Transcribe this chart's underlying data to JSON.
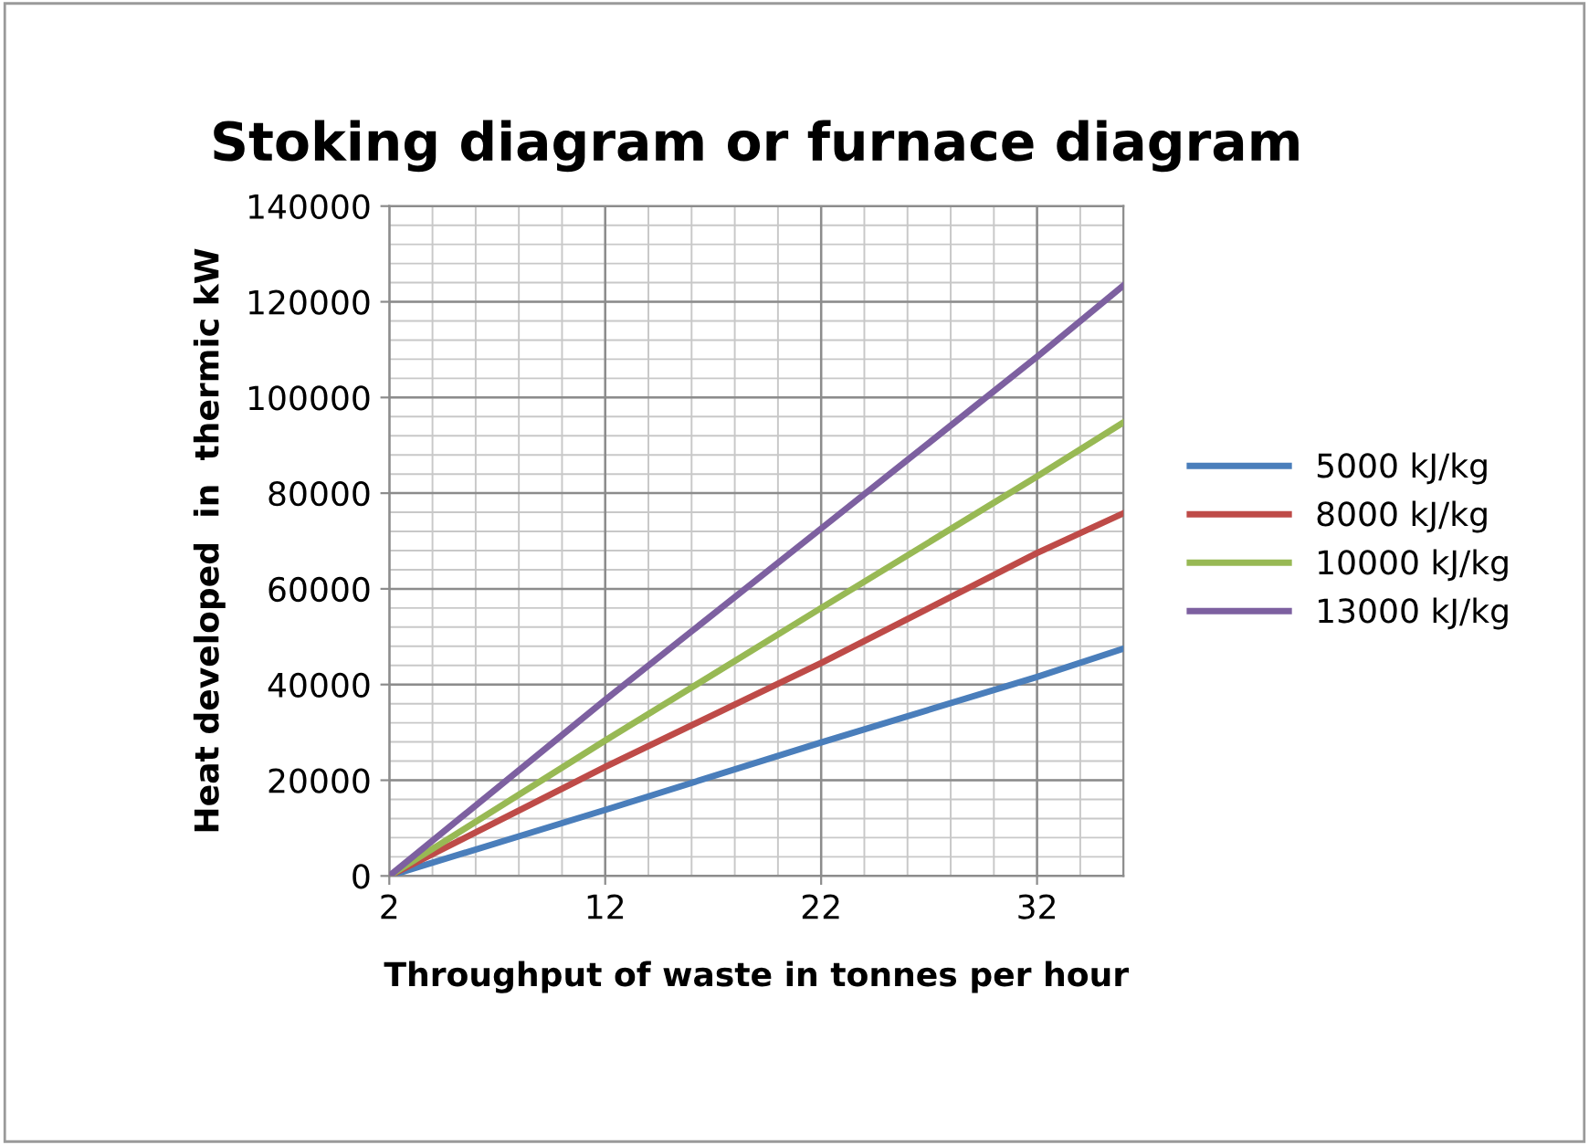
{
  "chart_data": {
    "type": "line",
    "title": "Stoking diagram or furnace diagram",
    "xlabel": "Throughput of waste in tonnes per hour",
    "ylabel": "Heat developed  in  thermic kW",
    "x": [
      2,
      12,
      22,
      32,
      36
    ],
    "series": [
      {
        "name": "5000 kJ/kg",
        "color": "#4a7ebb",
        "values": [
          0,
          13800,
          27900,
          41600,
          47500
        ]
      },
      {
        "name": "8000 kJ/kg",
        "color": "#be4b48",
        "values": [
          0,
          22800,
          44500,
          67500,
          75800
        ]
      },
      {
        "name": "10000 kJ/kg",
        "color": "#98b954",
        "values": [
          0,
          28300,
          56000,
          83500,
          94800
        ]
      },
      {
        "name": "13000 kJ/kg",
        "color": "#7d60a0",
        "values": [
          0,
          36800,
          72600,
          108500,
          123400
        ]
      }
    ],
    "xlim": [
      2,
      36
    ],
    "xticks": [
      2,
      12,
      22,
      32
    ],
    "ylim": [
      0,
      140000
    ],
    "yticks": [
      0,
      20000,
      40000,
      60000,
      80000,
      100000,
      120000,
      140000
    ],
    "grid": true,
    "legend": "right",
    "marker": "none",
    "line_style": "solid"
  }
}
